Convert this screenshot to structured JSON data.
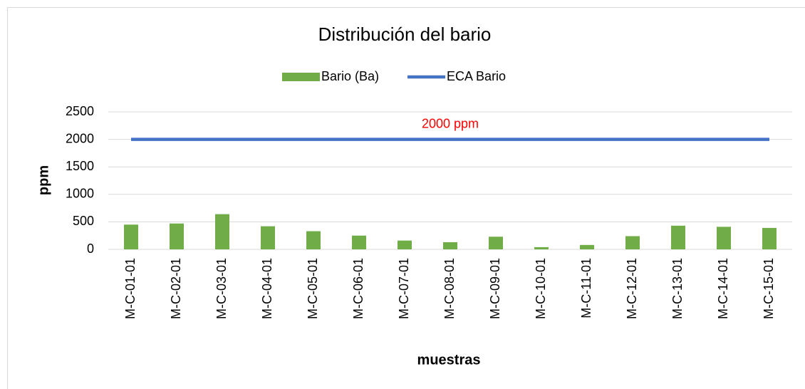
{
  "chart_data": {
    "type": "bar",
    "title": "Distribución del bario",
    "xlabel": "muestras",
    "ylabel": "ppm",
    "annotation": "2000 ppm",
    "categories": [
      "M-C-01-01",
      "M-C-02-01",
      "M-C-03-01",
      "M-C-04-01",
      "M-C-05-01",
      "M-C-06-01",
      "M-C-07-01",
      "M-C-08-01",
      "M-C-09-01",
      "M-C-10-01",
      "M-C-11-01",
      "M-C-12-01",
      "M-C-13-01",
      "M-C-14-01",
      "M-C-15-01"
    ],
    "series": [
      {
        "name": "Bario (Ba)",
        "type": "bar",
        "color": "#70ad47",
        "values": [
          450,
          470,
          640,
          420,
          330,
          250,
          160,
          130,
          230,
          40,
          80,
          240,
          430,
          410,
          390
        ]
      },
      {
        "name": "ECA Bario",
        "type": "line",
        "color": "#4472c4",
        "values": [
          2000,
          2000,
          2000,
          2000,
          2000,
          2000,
          2000,
          2000,
          2000,
          2000,
          2000,
          2000,
          2000,
          2000,
          2000
        ]
      }
    ],
    "ylim": [
      0,
      2500
    ],
    "yticks": [
      0,
      500,
      1000,
      1500,
      2000,
      2500
    ],
    "grid": true,
    "legend": "top"
  }
}
